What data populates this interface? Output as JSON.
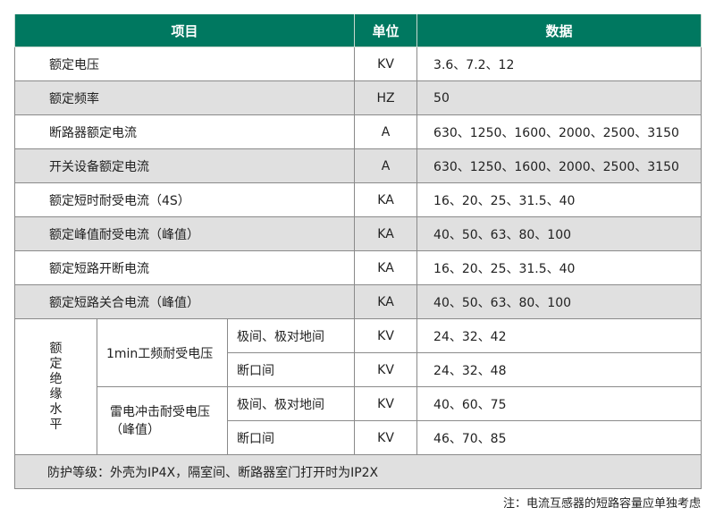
{
  "header": {
    "item": "项目",
    "unit": "单位",
    "data": "数据"
  },
  "rows": [
    {
      "item": "额定电压",
      "unit": "KV",
      "data": "3.6、7.2、12"
    },
    {
      "item": "额定频率",
      "unit": "HZ",
      "data": "50"
    },
    {
      "item": "断路器额定电流",
      "unit": "A",
      "data": "630、1250、1600、2000、2500、3150"
    },
    {
      "item": "开关设备额定电流",
      "unit": "A",
      "data": "630、1250、1600、2000、2500、3150"
    },
    {
      "item": "额定短时耐受电流（4S）",
      "unit": "KA",
      "data": "16、20、25、31.5、40"
    },
    {
      "item": "额定峰值耐受电流（峰值）",
      "unit": "KA",
      "data": "40、50、63、80、100"
    },
    {
      "item": "额定短路开断电流",
      "unit": "KA",
      "data": "16、20、25、31.5、40"
    },
    {
      "item": "额定短路关合电流（峰值）",
      "unit": "KA",
      "data": "40、50、63、80、100"
    }
  ],
  "insulation": {
    "label": "额定绝缘水平",
    "groups": [
      {
        "name": "1min工频耐受电压",
        "subs": [
          {
            "name": "极间、极对地间",
            "unit": "KV",
            "data": "24、32、42"
          },
          {
            "name": "断口间",
            "unit": "KV",
            "data": "24、32、48"
          }
        ]
      },
      {
        "name": "雷电冲击耐受电压（峰值）",
        "subs": [
          {
            "name": "极间、极对地间",
            "unit": "KV",
            "data": "40、60、75"
          },
          {
            "name": "断口间",
            "unit": "KV",
            "data": "46、70、85"
          }
        ]
      }
    ]
  },
  "footer": "防护等级：外壳为IP4X，隔室间、断路器室门打开时为IP2X",
  "note": "注：电流互感器的短路容量应单独考虑",
  "colors": {
    "header": "#007860",
    "row_alt": "#e0e0e0",
    "border": "#8a8a8a"
  }
}
